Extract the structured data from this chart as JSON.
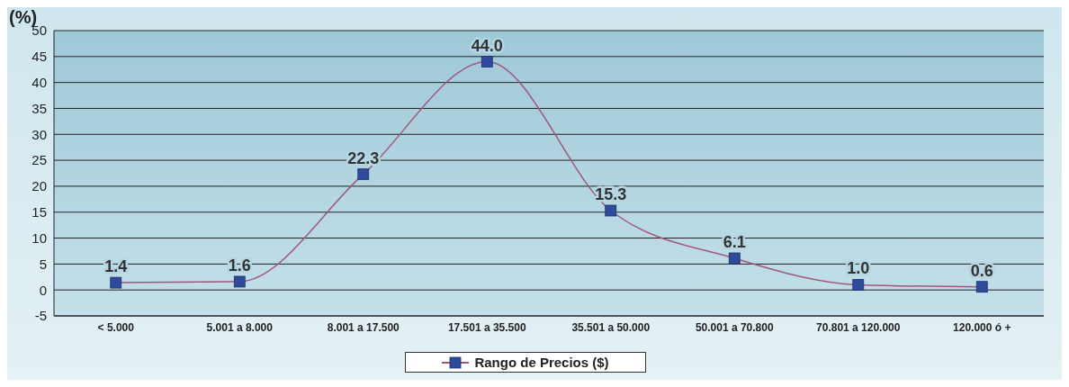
{
  "chart_data": {
    "type": "line",
    "ylabel": "(%)",
    "categories": [
      "< 5.000",
      "5.001 a 8.000",
      "8.001 a 17.500",
      "17.501 a 35.500",
      "35.501 a 50.000",
      "50.001 a 70.800",
      "70.801 a 120.000",
      "120.000 ó +"
    ],
    "series": [
      {
        "name": "Rango de Precios ($)",
        "color": "#a0587a",
        "colors": [
          "#2e4a9a",
          "#2e4a9a",
          "#2e4a9a",
          "#2e4a9a",
          "#2e4a9a",
          "#2e4a9a",
          "#2e4a9a",
          "#2e4a9a"
        ],
        "values": [
          1.4,
          1.6,
          22.3,
          44.0,
          15.3,
          6.1,
          1.0,
          0.6
        ],
        "value_labels": [
          "1.4",
          "1.6",
          "22.3",
          "44.0",
          "15.3",
          "6.1",
          "1.0",
          "0.6"
        ]
      }
    ],
    "ylim": [
      -5,
      50
    ],
    "yticks": [
      -5,
      0,
      5,
      10,
      15,
      20,
      25,
      30,
      35,
      40,
      45,
      50
    ],
    "grid": "y",
    "legend": "bottom",
    "marker": "square",
    "line_style": "solid"
  }
}
